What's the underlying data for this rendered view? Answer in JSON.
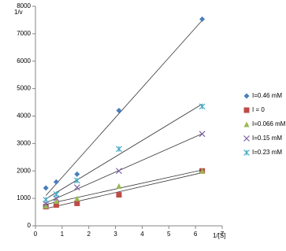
{
  "chart_data": {
    "type": "scatter",
    "x_label": "1/[S]",
    "y_label": "1/v",
    "x": [
      0.39,
      0.78,
      1.56,
      3.13,
      6.25
    ],
    "xlim": [
      0,
      7
    ],
    "xticks": [
      0,
      1,
      2,
      3,
      4,
      5,
      6,
      7
    ],
    "ylim": [
      0,
      8000
    ],
    "yticks": [
      0,
      1000,
      2000,
      3000,
      4000,
      5000,
      6000,
      7000,
      8000
    ],
    "grid": false,
    "trendline": true,
    "legend": "right",
    "series": [
      {
        "name": "I=0.46 mM",
        "color": "#4a7ebb",
        "marker": "diamond",
        "values": [
          1380,
          1600,
          1880,
          4200,
          7530
        ]
      },
      {
        "name": "I = 0",
        "color": "#be4b48",
        "marker": "square",
        "values": [
          700,
          760,
          820,
          1130,
          2000
        ]
      },
      {
        "name": "I=0.066 mM",
        "color": "#98b954",
        "marker": "triangle",
        "values": [
          730,
          900,
          1000,
          1450,
          2000
        ]
      },
      {
        "name": "I=0.15 mM",
        "color": "#7d60a0",
        "marker": "x",
        "values": [
          800,
          1000,
          1400,
          2000,
          3350
        ]
      },
      {
        "name": "I=0.23 mM",
        "color": "#46aac5",
        "marker": "star",
        "values": [
          950,
          1150,
          1650,
          2800,
          4350
        ]
      }
    ]
  }
}
